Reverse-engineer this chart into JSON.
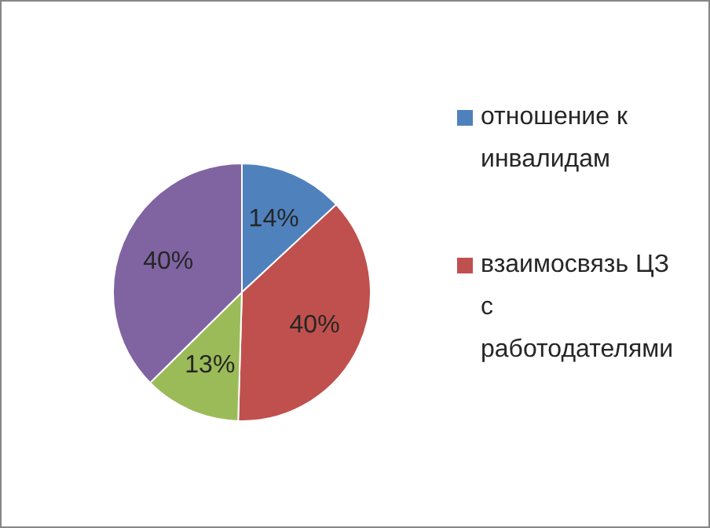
{
  "chart_data": {
    "type": "pie",
    "categories": [
      "отношение к инвалидам",
      "взаимосвязь ЦЗ с работодателями",
      null,
      null
    ],
    "values": [
      14,
      40,
      13,
      40
    ],
    "value_labels": [
      "14%",
      "40%",
      "13%",
      "40%"
    ],
    "colors": [
      "#4f81bd",
      "#c0504d",
      "#9bbb59",
      "#8064a2"
    ],
    "legend": "right"
  }
}
